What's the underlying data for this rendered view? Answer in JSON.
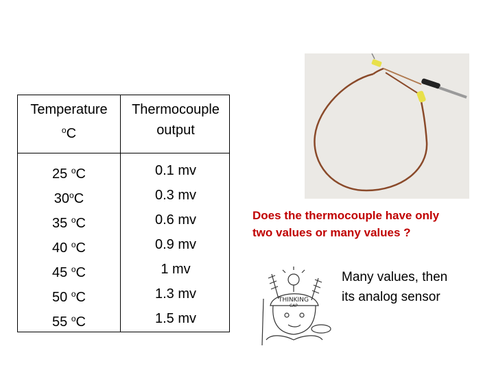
{
  "table": {
    "header_temperature_line1": "Temperature",
    "header_temperature_line2": "C",
    "header_degree": "o",
    "header_output_line1": "Thermocouple",
    "header_output_line2": "output",
    "rows": [
      {
        "temp": "25 ",
        "deg": "o",
        "unit": "C",
        "value": "0.1 mv"
      },
      {
        "temp": "30",
        "deg": "o",
        "unit": "C",
        "value": "0.3 mv"
      },
      {
        "temp": "35 ",
        "deg": "o",
        "unit": "C",
        "value": "0.6 mv"
      },
      {
        "temp": "40 ",
        "deg": "o",
        "unit": "C",
        "value": "0.9 mv"
      },
      {
        "temp": "45 ",
        "deg": "o",
        "unit": "C",
        "value": "1 mv"
      },
      {
        "temp": "50 ",
        "deg": "o",
        "unit": "C",
        "value": "1.3 mv"
      },
      {
        "temp": "55 ",
        "deg": "o",
        "unit": "C",
        "value": "1.5 mv"
      }
    ]
  },
  "question": {
    "line1": "Does the thermocouple have only",
    "line2": "two values or many values ?"
  },
  "answer": {
    "line1": "Many values, then",
    "line2": "its analog sensor"
  },
  "cartoon": {
    "cap_text_line1": "THINKING",
    "cap_text_line2": "CAP"
  },
  "colors": {
    "question": "#c00000",
    "wire": "#8a4a2a",
    "insulation": "#e8e04a",
    "probe": "#9a9a9a"
  }
}
